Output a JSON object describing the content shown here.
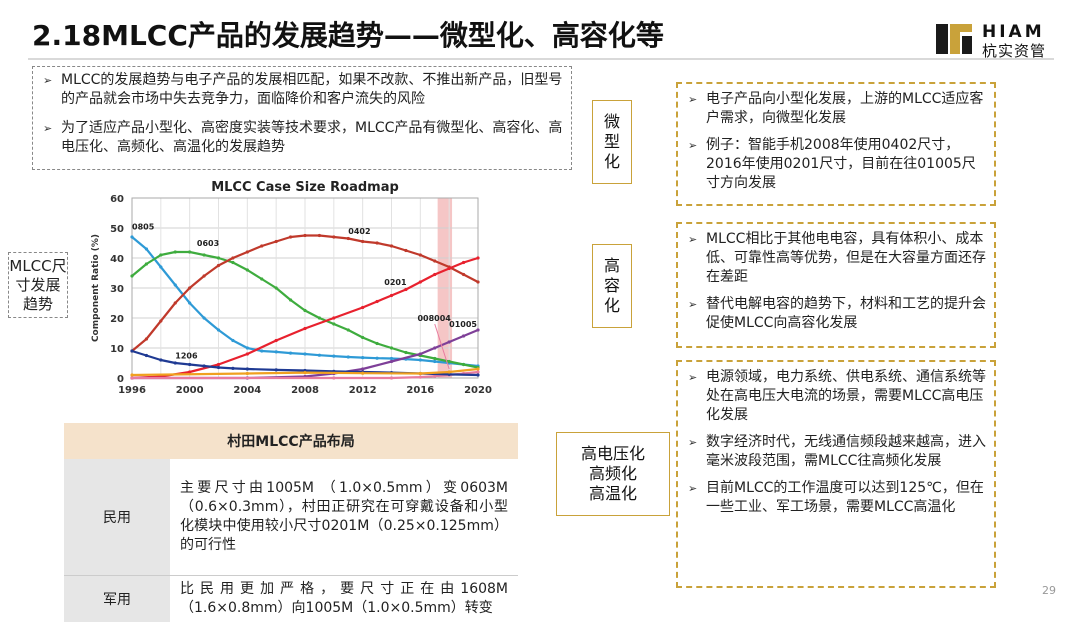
{
  "title": "2.18MLCC产品的发展趋势——微型化、高容化等",
  "logo": {
    "line1": "HIAM",
    "line2": "杭实资管"
  },
  "intro_bullets": [
    "MLCC的发展趋势与电子产品的发展相匹配，如果不改款、不推出新产品，旧型号的产品就会市场中失去竞争力，面临降价和客户流失的风险",
    "为了适应产品小型化、高密度实装等技术要求，MLCC产品有微型化、高容化、高电压化、高频化、高温化的发展趋势"
  ],
  "side_label": "MLCC尺寸发展趋势",
  "chart_data": {
    "type": "line",
    "title": "MLCC Case Size Roadmap",
    "ylabel": "Component Ratio (%)",
    "xlabel": "",
    "xlim": [
      1996,
      2020
    ],
    "ylim": [
      0,
      60
    ],
    "x_ticks": [
      1996,
      2000,
      2004,
      2008,
      2012,
      2016,
      2020
    ],
    "y_ticks": [
      0,
      10,
      20,
      30,
      40,
      50,
      60
    ],
    "grid": true,
    "highlight_band": [
      2017.2,
      2018.2
    ],
    "series": [
      {
        "name": "0805",
        "color": "#2e9ad6",
        "x": [
          1996,
          1997,
          1998,
          1999,
          2000,
          2001,
          2002,
          2003,
          2004,
          2005,
          2006,
          2007,
          2008,
          2009,
          2010,
          2011,
          2012,
          2013,
          2014,
          2015,
          2016,
          2017,
          2018,
          2019,
          2020
        ],
        "y": [
          47,
          43,
          37,
          31,
          25,
          20,
          16,
          12.5,
          10,
          9,
          8.7,
          8.3,
          8,
          7.6,
          7.3,
          7,
          6.8,
          6.6,
          6.5,
          6.3,
          6,
          5.5,
          5,
          4.5,
          4
        ]
      },
      {
        "name": "0603",
        "color": "#3eac3e",
        "x": [
          1996,
          1997,
          1998,
          1999,
          2000,
          2001,
          2002,
          2003,
          2004,
          2005,
          2006,
          2007,
          2008,
          2009,
          2010,
          2011,
          2012,
          2013,
          2014,
          2015,
          2016,
          2017,
          2018,
          2019,
          2020
        ],
        "y": [
          34,
          38,
          41,
          42,
          42,
          41,
          40,
          38.5,
          36,
          33,
          30,
          26,
          22.5,
          20,
          18,
          16,
          13.5,
          11.5,
          10,
          8.5,
          7.5,
          6.5,
          5.5,
          4.5,
          3.5
        ]
      },
      {
        "name": "0402",
        "color": "#c0392b",
        "x": [
          1996,
          1997,
          1998,
          1999,
          2000,
          2001,
          2002,
          2003,
          2004,
          2005,
          2006,
          2007,
          2008,
          2009,
          2010,
          2011,
          2012,
          2013,
          2014,
          2015,
          2016,
          2017,
          2018,
          2019,
          2020
        ],
        "y": [
          9,
          13,
          19,
          25,
          30,
          34,
          37.5,
          40,
          42,
          44,
          45.5,
          47,
          47.5,
          47.5,
          47,
          46.5,
          45.5,
          45,
          44,
          42.5,
          41,
          39,
          37,
          34.5,
          32
        ]
      },
      {
        "name": "0201",
        "color": "#e8212e",
        "x": [
          1996,
          1998,
          2000,
          2002,
          2004,
          2006,
          2008,
          2010,
          2012,
          2013,
          2014,
          2015,
          2016,
          2017,
          2018,
          2019,
          2020
        ],
        "y": [
          0,
          0.5,
          2,
          4.5,
          8,
          12.5,
          16.5,
          20,
          23.5,
          25.5,
          27.5,
          29.5,
          32,
          34.5,
          36.5,
          38.5,
          40
        ]
      },
      {
        "name": "01005",
        "color": "#7e3f98",
        "x": [
          1996,
          2004,
          2008,
          2010,
          2012,
          2014,
          2016,
          2017,
          2018,
          2019,
          2020
        ],
        "y": [
          0,
          0,
          0.5,
          1.5,
          3,
          5.5,
          8,
          10,
          12,
          14,
          16
        ]
      },
      {
        "name": "008004",
        "color": "#e87ca0",
        "x": [
          1996,
          2010,
          2014,
          2016,
          2017,
          2018,
          2019,
          2020
        ],
        "y": [
          0,
          0,
          0,
          0.3,
          0.6,
          1,
          1.5,
          2
        ]
      },
      {
        "name": "1206",
        "color": "#1f3a93",
        "x": [
          1996,
          1997,
          1998,
          1999,
          2000,
          2001,
          2002,
          2003,
          2004,
          2006,
          2008,
          2010,
          2012,
          2014,
          2016,
          2018,
          2020
        ],
        "y": [
          9,
          7.5,
          6,
          5,
          4.5,
          4,
          3.5,
          3.2,
          3,
          2.7,
          2.5,
          2.2,
          2,
          1.8,
          1.5,
          1.2,
          1
        ]
      },
      {
        "name": "",
        "color": "#f0a020",
        "x": [
          1996,
          2004,
          2008,
          2012,
          2016,
          2018,
          2020
        ],
        "y": [
          1,
          1.5,
          1.8,
          1.6,
          1.5,
          2,
          3
        ]
      }
    ]
  },
  "table": {
    "header": "村田MLCC产品布局",
    "rows": [
      {
        "label": "民用",
        "text": "主要尺寸由1005M （1.0×0.5mm）变0603M（0.6×0.3mm），村田正研究在可穿戴设备和小型化模块中使用较小尺寸0201M（0.25×0.125mm）的可行性"
      },
      {
        "label": "军用",
        "text": "比民用更加严格，要尺寸正在由1608M（1.6×0.8mm）向1005M（1.0×0.5mm）转变"
      }
    ]
  },
  "tags": {
    "micro": "微型化",
    "capacity": "高容化",
    "voltage": "高电压化\n高频化\n高温化"
  },
  "right_boxes": {
    "micro": [
      "电子产品向小型化发展，上游的MLCC适应客户需求，向微型化发展",
      "例子：智能手机2008年使用0402尺寸，2016年使用0201尺寸，目前在往01005尺寸方向发展"
    ],
    "capacity": [
      "MLCC相比于其他电电容，具有体积小、成本低、可靠性高等优势，但是在大容量方面还存在差距",
      "替代电解电容的趋势下，材料和工艺的提升会促使MLCC向高容化发展"
    ],
    "voltage": [
      "电源领域，电力系统、供电系统、通信系统等处在高电压大电流的场景，需要MLCC高电压化发展",
      "数字经济时代，无线通信频段越来越高，进入毫米波段范围，需MLCC往高频化发展",
      "目前MLCC的工作温度可以达到125℃，但在一些工业、军工场景，需要MLCC高温化"
    ]
  },
  "page_number": "29"
}
